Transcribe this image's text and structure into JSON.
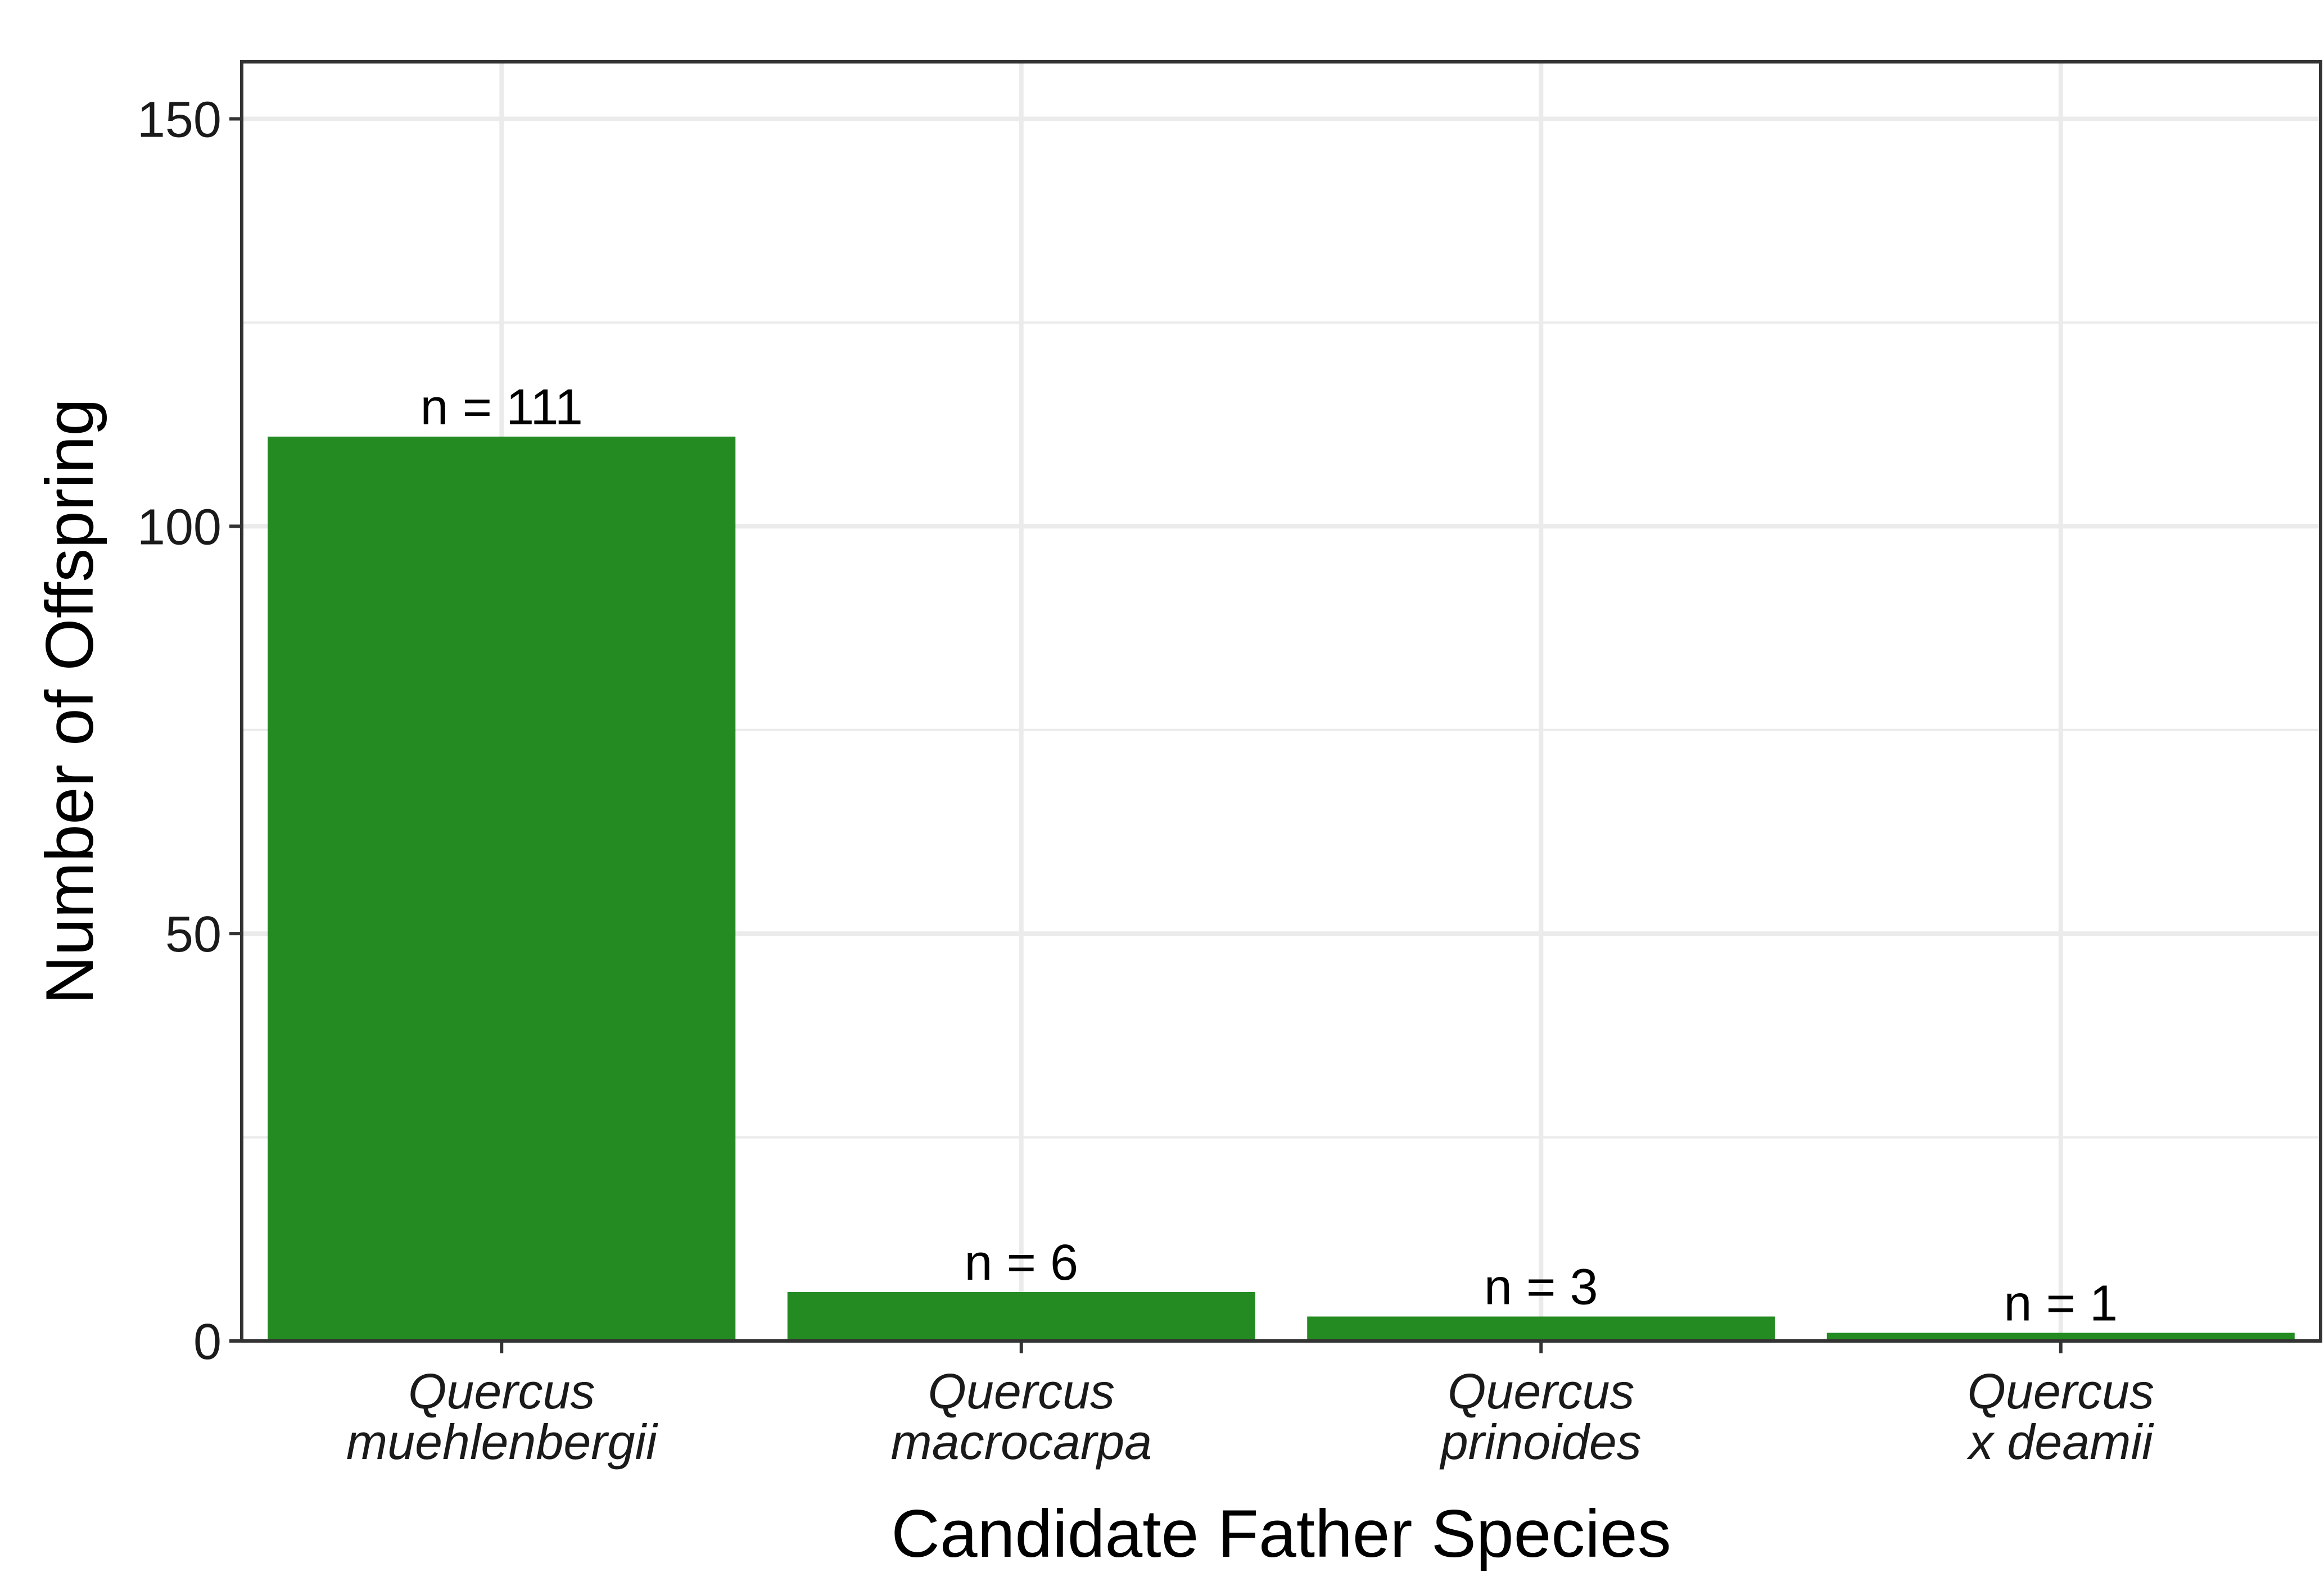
{
  "chart_data": {
    "type": "bar",
    "categories": [
      [
        "Quercus",
        "muehlenbergii"
      ],
      [
        "Quercus",
        "macrocarpa"
      ],
      [
        "Quercus",
        "prinoides"
      ],
      [
        "Quercus",
        "x deamii"
      ]
    ],
    "values": [
      111,
      6,
      3,
      1
    ],
    "data_labels": [
      "n = 111",
      "n = 6",
      "n = 3",
      "n = 1"
    ],
    "xlabel": "Candidate Father Species",
    "ylabel": "Number of Offspring",
    "ylim": [
      0,
      157
    ],
    "yticks": [
      0,
      50,
      100,
      150
    ],
    "yticks_minor": [
      25,
      75,
      125
    ],
    "grid": true,
    "colors": {
      "bar": "#238B22",
      "grid": "#EBEBEB",
      "panel_border": "#333333"
    }
  }
}
